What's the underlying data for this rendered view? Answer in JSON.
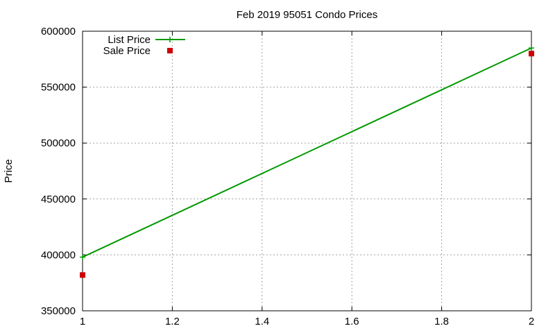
{
  "chart_data": {
    "type": "line",
    "title": "Feb 2019 95051 Condo Prices",
    "xlabel": "",
    "ylabel": "Price",
    "xlim": [
      1,
      2
    ],
    "ylim": [
      350000,
      600000
    ],
    "xticks": [
      "1",
      "1.2",
      "1.4",
      "1.6",
      "1.8",
      "2"
    ],
    "yticks": [
      "350000",
      "400000",
      "450000",
      "500000",
      "550000",
      "600000"
    ],
    "grid": true,
    "legend_position": "top-left",
    "series": [
      {
        "name": "List Price",
        "kind": "line-with-points",
        "color": "#009900",
        "marker": "plus",
        "x": [
          1,
          2
        ],
        "y": [
          398000,
          585000
        ]
      },
      {
        "name": "Sale Price",
        "kind": "points",
        "color": "#cc0000",
        "marker": "square",
        "x": [
          1,
          2
        ],
        "y": [
          382000,
          580000
        ]
      }
    ]
  }
}
